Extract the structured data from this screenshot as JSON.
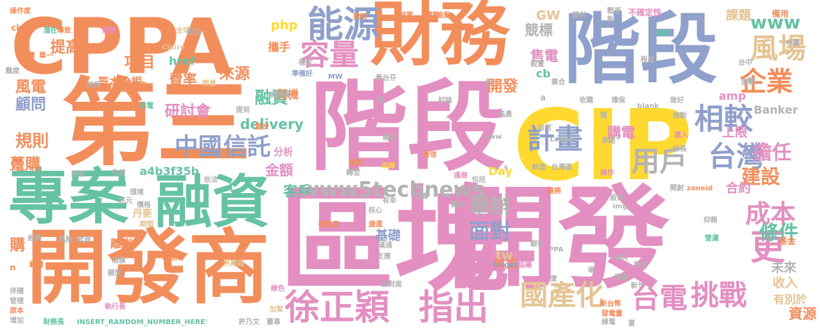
{
  "words": [
    {
      "text": "階段",
      "color": "p"
    },
    {
      "text": "第三",
      "color": "o"
    },
    {
      "text": "區塊",
      "color": "p"
    },
    {
      "text": "開發",
      "color": "p"
    },
    {
      "text": "CPPA",
      "color": "o"
    },
    {
      "text": "財務",
      "color": "o"
    },
    {
      "text": "階段",
      "color": "b"
    },
    {
      "text": "CIP",
      "color": "y"
    },
    {
      "text": "開發商",
      "color": "o"
    },
    {
      "text": "專案",
      "color": "g"
    },
    {
      "text": "融資",
      "color": "g"
    },
    {
      "text": "能源",
      "color": "b"
    },
    {
      "text": "容量",
      "color": "p"
    },
    {
      "text": "徐正穎",
      "color": "p"
    },
    {
      "text": "指出",
      "color": "p"
    },
    {
      "text": "國產化",
      "color": "t"
    },
    {
      "text": "台電",
      "color": "p"
    },
    {
      "text": "挑戰",
      "color": "p"
    },
    {
      "text": "相較",
      "color": "b"
    },
    {
      "text": "計畫",
      "color": "b"
    },
    {
      "text": "台灣",
      "color": "b"
    },
    {
      "text": "用戶",
      "color": "s"
    },
    {
      "text": "風場",
      "color": "t"
    },
    {
      "text": "企業",
      "color": "o"
    },
    {
      "text": "成本",
      "color": "p"
    },
    {
      "text": "更",
      "color": "p"
    },
    {
      "text": "中國",
      "color": "b"
    },
    {
      "text": "信託",
      "color": "b"
    },
    {
      "text": "www5technews",
      "color": "s"
    },
    {
      "text": "舉辦",
      "color": "s"
    },
    {
      "text": "面對",
      "color": "b"
    },
    {
      "text": "建設",
      "color": "o"
    },
    {
      "text": "擔任",
      "color": "p"
    },
    {
      "text": "條件",
      "color": "g"
    },
    {
      "text": "www",
      "color": "g"
    },
    {
      "text": "風電",
      "color": "o"
    },
    {
      "text": "顧問",
      "color": "b"
    },
    {
      "text": "規則",
      "color": "o"
    },
    {
      "text": "提高",
      "color": "o"
    },
    {
      "text": "項目",
      "color": "o"
    },
    {
      "text": "費率",
      "color": "o"
    },
    {
      "text": "來源",
      "color": "o"
    },
    {
      "text": "融資",
      "color": "g"
    },
    {
      "text": "研討會",
      "color": "p"
    },
    {
      "text": "delivery",
      "color": "g"
    },
    {
      "text": "金額",
      "color": "p"
    },
    {
      "text": "客戶",
      "color": "g"
    },
    {
      "text": "競標",
      "color": "s"
    },
    {
      "text": "售電",
      "color": "p"
    },
    {
      "text": "開發",
      "color": "o"
    },
    {
      "text": "購電",
      "color": "p"
    },
    {
      "text": "課題",
      "color": "t"
    },
    {
      "text": "GW",
      "color": "t"
    },
    {
      "text": "php",
      "color": "y"
    },
    {
      "text": "href",
      "color": "g"
    },
    {
      "text": "cb",
      "color": "g"
    },
    {
      "text": "amp",
      "color": "p"
    },
    {
      "text": "上限",
      "color": "p"
    },
    {
      "text": "合約",
      "color": "p"
    },
    {
      "text": "再生",
      "color": "o"
    },
    {
      "text": "基礎",
      "color": "b"
    },
    {
      "text": "tw",
      "color": "t"
    },
    {
      "text": "未來",
      "color": "s"
    },
    {
      "text": "收入",
      "color": "t"
    },
    {
      "text": "資源",
      "color": "o"
    },
    {
      "text": "有別於",
      "color": "t"
    },
    {
      "text": "Banker",
      "color": "s"
    },
    {
      "text": "a4b3f35b",
      "color": "g"
    },
    {
      "text": "Day",
      "color": "y"
    },
    {
      "text": "哥本哈根",
      "color": "o"
    },
    {
      "text": "離岸",
      "color": "o"
    },
    {
      "text": "丹麥",
      "color": "t"
    },
    {
      "text": "躉購",
      "color": "o"
    },
    {
      "text": "購",
      "color": "o"
    },
    {
      "text": "契機",
      "color": "o"
    },
    {
      "text": "攜手",
      "color": "o"
    },
    {
      "text": "分析",
      "color": "p"
    },
    {
      "text": "依法",
      "color": "s"
    },
    {
      "text": "脫鉤",
      "color": "o"
    },
    {
      "text": "餘電",
      "color": "o"
    },
    {
      "text": "趨勢",
      "color": "o"
    },
    {
      "text": "戰爭",
      "color": "s"
    },
    {
      "text": "不確定性",
      "color": "p"
    },
    {
      "text": "備用",
      "color": "o"
    },
    {
      "text": "操作度",
      "color": "o"
    },
    {
      "text": "潛在",
      "color": "g"
    },
    {
      "text": "導致",
      "color": "o"
    },
    {
      "text": "競價",
      "color": "p"
    },
    {
      "text": "延攬",
      "color": "o"
    },
    {
      "text": "單一",
      "color": "o"
    },
    {
      "text": "難度",
      "color": "s"
    },
    {
      "text": "技術",
      "color": "s"
    },
    {
      "text": "發電方",
      "color": "o"
    },
    {
      "text": "供電",
      "color": "g"
    },
    {
      "text": "岸",
      "color": "o"
    },
    {
      "text": "先前",
      "color": "s"
    },
    {
      "text": "環境",
      "color": "s"
    },
    {
      "text": "價格",
      "color": "s"
    },
    {
      "text": "兆元",
      "color": "s"
    },
    {
      "text": "期間",
      "color": "t"
    },
    {
      "text": "評等",
      "color": "s"
    },
    {
      "text": "經濟",
      "color": "s"
    },
    {
      "text": "風險",
      "color": "s"
    },
    {
      "text": "歐洲",
      "color": "s"
    },
    {
      "text": "規模",
      "color": "s"
    },
    {
      "text": "模型",
      "color": "s"
    },
    {
      "text": "範疇",
      "color": "o"
    },
    {
      "text": "伴隨",
      "color": "s"
    },
    {
      "text": "管理",
      "color": "s"
    },
    {
      "text": "原本",
      "color": "o"
    },
    {
      "text": "增加",
      "color": "s"
    },
    {
      "text": "財務長",
      "color": "g"
    },
    {
      "text": "INSERT_RANDOM_NUMBER_HERE'",
      "color": "g"
    },
    {
      "text": "執行長",
      "color": "p"
    },
    {
      "text": "許乃文",
      "color": "s"
    },
    {
      "text": "董事",
      "color": "s"
    },
    {
      "text": "加緊",
      "color": "t"
    },
    {
      "text": "綠色",
      "color": "p"
    },
    {
      "text": "事務所",
      "color": "o"
    },
    {
      "text": "供應鏈",
      "color": "t"
    },
    {
      "text": "Claire",
      "color": "t"
    },
    {
      "text": "全球",
      "color": "t"
    },
    {
      "text": "相互",
      "color": "s"
    },
    {
      "text": "穩定",
      "color": "s"
    },
    {
      "text": "榮景",
      "color": "t"
    },
    {
      "text": "總經理",
      "color": "s"
    },
    {
      "text": "準備好",
      "color": "b"
    },
    {
      "text": "MW",
      "color": "b"
    },
    {
      "text": "黃台芬",
      "color": "s"
    },
    {
      "text": "金融",
      "color": "o"
    },
    {
      "text": "轉供",
      "color": "s"
    },
    {
      "text": "新",
      "color": "s"
    },
    {
      "text": "持續",
      "color": "g"
    },
    {
      "text": "考量",
      "color": "s"
    },
    {
      "text": "設置",
      "color": "s"
    },
    {
      "text": "集合",
      "color": "s"
    },
    {
      "text": "程度",
      "color": "s"
    },
    {
      "text": "台中",
      "color": "s"
    },
    {
      "text": "年",
      "color": "s"
    },
    {
      "text": "約",
      "color": "s"
    },
    {
      "text": "討論",
      "color": "s"
    },
    {
      "text": "需求",
      "color": "s"
    },
    {
      "text": "雨",
      "color": "s"
    },
    {
      "text": "收購",
      "color": "s"
    },
    {
      "text": "擔保",
      "color": "s"
    },
    {
      "text": "_blank",
      "color": "s"
    },
    {
      "text": "做好",
      "color": "s"
    },
    {
      "text": "搶難",
      "color": "s"
    },
    {
      "text": "推動",
      "color": "s"
    },
    {
      "text": "自然",
      "color": "s"
    },
    {
      "text": "風產",
      "color": "s"
    },
    {
      "text": "承諾",
      "color": "s"
    },
    {
      "text": "開",
      "color": "s"
    },
    {
      "text": "選入",
      "color": "p"
    },
    {
      "text": "所長",
      "color": "s"
    },
    {
      "text": "提到",
      "color": "s"
    },
    {
      "text": "腳步",
      "color": "o"
    },
    {
      "text": "國際",
      "color": "o"
    },
    {
      "text": "轉型",
      "color": "s"
    },
    {
      "text": "法律",
      "color": "y"
    },
    {
      "text": "授信",
      "color": "o"
    },
    {
      "text": "aww",
      "color": "s"
    },
    {
      "text": "Lohan",
      "color": "s"
    },
    {
      "text": "創造",
      "color": "s"
    },
    {
      "text": "台灣區",
      "color": "s"
    },
    {
      "text": "通商",
      "color": "p"
    },
    {
      "text": "包括",
      "color": "s"
    },
    {
      "text": "操作",
      "color": "p"
    },
    {
      "text": "開創",
      "color": "s"
    },
    {
      "text": "zoneid",
      "color": "o"
    },
    {
      "text": "義務",
      "color": "o"
    },
    {
      "text": "有幸",
      "color": "s"
    },
    {
      "text": "估算",
      "color": "s"
    },
    {
      "text": "轉向",
      "color": "s"
    },
    {
      "text": "核心",
      "color": "s"
    },
    {
      "text": "img",
      "color": "s"
    },
    {
      "text": "設計",
      "color": "s"
    },
    {
      "text": "仰賴",
      "color": "s"
    },
    {
      "text": "複雜度",
      "color": "o"
    },
    {
      "text": "遴選",
      "color": "o"
    },
    {
      "text": "滿通",
      "color": "s"
    },
    {
      "text": "支應",
      "color": "s"
    },
    {
      "text": "銀行",
      "color": "s"
    },
    {
      "text": "PPA",
      "color": "s"
    },
    {
      "text": "target",
      "color": "b"
    },
    {
      "text": "協議",
      "color": "p"
    },
    {
      "text": "營運",
      "color": "g"
    },
    {
      "text": "基金",
      "color": "o"
    },
    {
      "text": "總共",
      "color": "s"
    },
    {
      "text": "指出",
      "color": "s"
    },
    {
      "text": "場",
      "color": "s"
    },
    {
      "text": "億",
      "color": "s"
    },
    {
      "text": "俄烏",
      "color": "s"
    },
    {
      "text": "新竹",
      "color": "s"
    },
    {
      "text": "s",
      "color": "s"
    },
    {
      "text": "a",
      "color": "s"
    },
    {
      "text": "n",
      "color": "o"
    },
    {
      "text": "ck",
      "color": "o"
    },
    {
      "text": "面對面",
      "color": "s"
    },
    {
      "text": "新台幣",
      "color": "o"
    },
    {
      "text": "發電量",
      "color": "o"
    },
    {
      "text": "綠電",
      "color": "s"
    },
    {
      "text": "富",
      "color": "s"
    }
  ]
}
